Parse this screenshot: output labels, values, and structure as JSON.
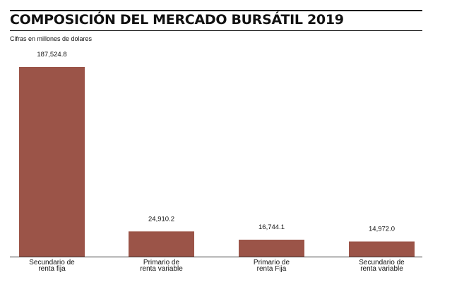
{
  "title": "COMPOSICIÓN DEL MERCADO BURSÁTIL 2019",
  "subtitle": "Cifras en millones de dolares",
  "colors": {
    "bar": "#9b5448",
    "axis": "#333333",
    "rule": "#111111"
  },
  "chart_data": {
    "type": "bar",
    "title": "COMPOSICIÓN DEL MERCADO BURSÁTIL 2019",
    "subtitle": "Cifras en millones de dolares",
    "xlabel": "",
    "ylabel": "",
    "grid": false,
    "categories": [
      [
        "Secundario de",
        "renta fija"
      ],
      [
        "Primario de",
        "renta variable"
      ],
      [
        "Primario de",
        "renta Fija"
      ],
      [
        "Secundario de",
        "renta variable"
      ]
    ],
    "values": [
      187524.8,
      24910.2,
      16744.1,
      14972.0
    ],
    "value_labels": [
      "187,524.8",
      "24,910.2",
      "16,744.1",
      "14,972.0"
    ],
    "ylim": [
      0,
      187524.8
    ]
  }
}
